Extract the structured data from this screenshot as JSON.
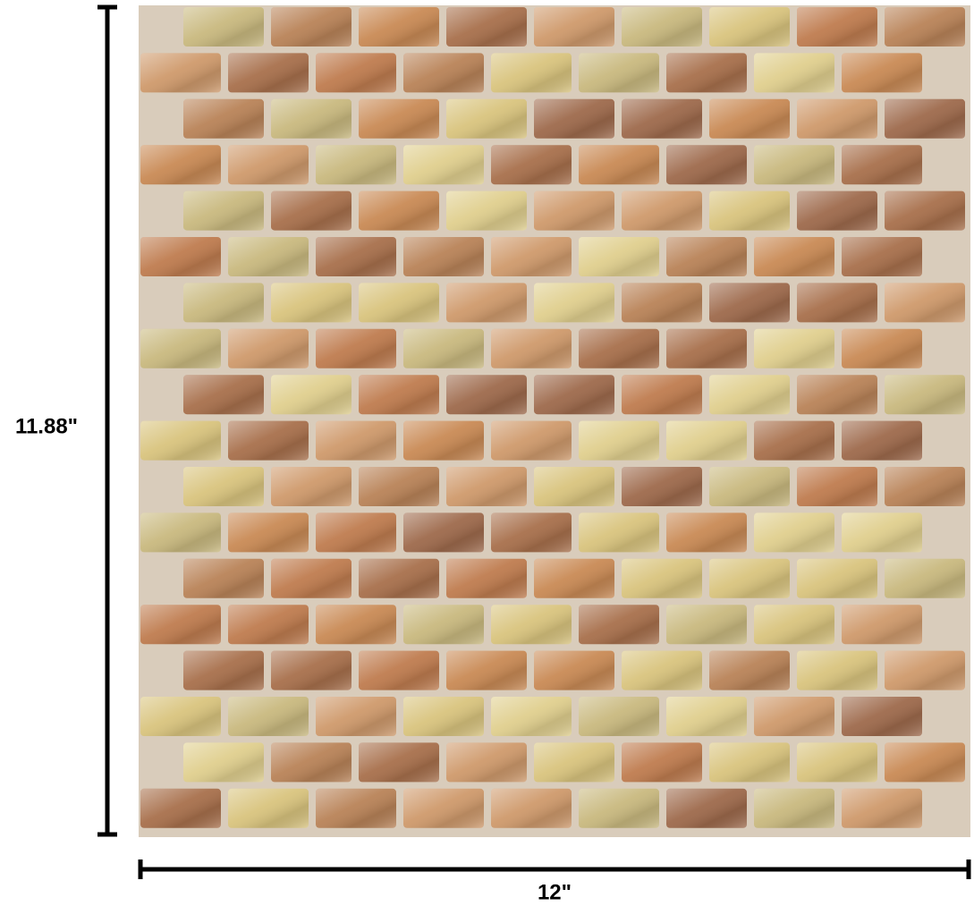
{
  "dimensions": {
    "height_label": "11.88\"",
    "width_label": "12\""
  }
}
